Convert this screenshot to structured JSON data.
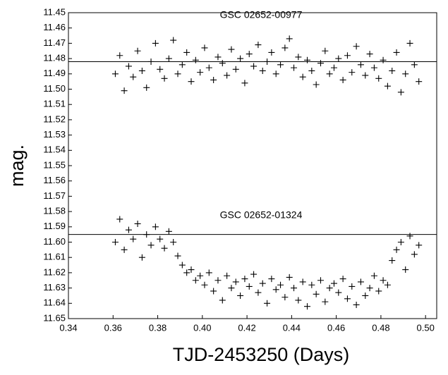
{
  "chart_data": {
    "type": "scatter",
    "xlabel": "TJD-2453250 (Days)",
    "ylabel": "mag.",
    "xlim": [
      0.34,
      0.505
    ],
    "ylim": [
      11.45,
      11.65
    ],
    "y_inverted": true,
    "xticks": [
      0.34,
      0.36,
      0.38,
      {
        "value": 0.4,
        "label": "0.40"
      },
      0.42,
      0.44,
      0.46,
      0.48,
      {
        "value": 0.5,
        "label": "0.50"
      }
    ],
    "yticks": [
      11.45,
      11.46,
      11.47,
      11.48,
      11.49,
      {
        "value": 11.5,
        "label": "11.50"
      },
      11.51,
      11.52,
      11.53,
      11.54,
      11.55,
      11.56,
      11.57,
      11.58,
      11.59,
      {
        "value": 11.6,
        "label": "11.60"
      },
      11.61,
      11.62,
      11.63,
      11.64,
      11.65
    ],
    "hlines": [
      11.482,
      11.595
    ],
    "series": [
      {
        "name": "GSC 02652-00977",
        "color": "#000000",
        "x": [
          0.361,
          0.363,
          0.365,
          0.367,
          0.369,
          0.371,
          0.373,
          0.375,
          0.377,
          0.379,
          0.381,
          0.383,
          0.385,
          0.387,
          0.389,
          0.391,
          0.393,
          0.395,
          0.397,
          0.399,
          0.401,
          0.403,
          0.405,
          0.407,
          0.409,
          0.411,
          0.413,
          0.415,
          0.417,
          0.419,
          0.421,
          0.423,
          0.425,
          0.427,
          0.429,
          0.431,
          0.433,
          0.435,
          0.437,
          0.439,
          0.441,
          0.443,
          0.445,
          0.447,
          0.449,
          0.451,
          0.453,
          0.455,
          0.457,
          0.459,
          0.461,
          0.463,
          0.465,
          0.467,
          0.469,
          0.471,
          0.473,
          0.475,
          0.477,
          0.479,
          0.481,
          0.483,
          0.485,
          0.487,
          0.489,
          0.491,
          0.493,
          0.495,
          0.497
        ],
        "values": [
          11.49,
          11.478,
          11.501,
          11.485,
          11.492,
          11.475,
          11.488,
          11.499,
          11.482,
          11.47,
          11.487,
          11.493,
          11.48,
          11.468,
          11.49,
          11.484,
          11.476,
          11.495,
          11.481,
          11.489,
          11.473,
          11.486,
          11.494,
          11.479,
          11.483,
          11.491,
          11.474,
          11.487,
          11.48,
          11.496,
          11.477,
          11.485,
          11.471,
          11.488,
          11.482,
          11.476,
          11.49,
          11.484,
          11.473,
          11.467,
          11.486,
          11.479,
          11.492,
          11.481,
          11.488,
          11.497,
          11.483,
          11.475,
          11.49,
          11.486,
          11.48,
          11.494,
          11.478,
          11.489,
          11.472,
          11.484,
          11.491,
          11.477,
          11.486,
          11.493,
          11.481,
          11.498,
          11.488,
          11.476,
          11.502,
          11.49,
          11.47,
          11.484,
          11.495
        ]
      },
      {
        "name": "GSC 02652-01324",
        "color": "#000000",
        "x": [
          0.361,
          0.363,
          0.365,
          0.367,
          0.369,
          0.371,
          0.373,
          0.375,
          0.377,
          0.379,
          0.381,
          0.383,
          0.385,
          0.387,
          0.389,
          0.391,
          0.393,
          0.395,
          0.397,
          0.399,
          0.401,
          0.403,
          0.405,
          0.407,
          0.409,
          0.411,
          0.413,
          0.415,
          0.417,
          0.419,
          0.421,
          0.423,
          0.425,
          0.427,
          0.429,
          0.431,
          0.433,
          0.435,
          0.437,
          0.439,
          0.441,
          0.443,
          0.445,
          0.447,
          0.449,
          0.451,
          0.453,
          0.455,
          0.457,
          0.459,
          0.461,
          0.463,
          0.465,
          0.467,
          0.469,
          0.471,
          0.473,
          0.475,
          0.477,
          0.479,
          0.481,
          0.483,
          0.485,
          0.487,
          0.489,
          0.491,
          0.493,
          0.495,
          0.497
        ],
        "values": [
          11.6,
          11.585,
          11.605,
          11.592,
          11.598,
          11.588,
          11.61,
          11.595,
          11.602,
          11.59,
          11.598,
          11.604,
          11.593,
          11.6,
          11.609,
          11.615,
          11.62,
          11.618,
          11.625,
          11.622,
          11.628,
          11.62,
          11.632,
          11.625,
          11.638,
          11.622,
          11.63,
          11.626,
          11.635,
          11.624,
          11.629,
          11.621,
          11.633,
          11.627,
          11.64,
          11.624,
          11.631,
          11.628,
          11.636,
          11.623,
          11.63,
          11.638,
          11.626,
          11.642,
          11.628,
          11.634,
          11.625,
          11.639,
          11.63,
          11.627,
          11.633,
          11.624,
          11.637,
          11.629,
          11.641,
          11.626,
          11.635,
          11.63,
          11.622,
          11.632,
          11.625,
          11.628,
          11.612,
          11.605,
          11.6,
          11.618,
          11.596,
          11.608,
          11.602
        ]
      }
    ]
  }
}
